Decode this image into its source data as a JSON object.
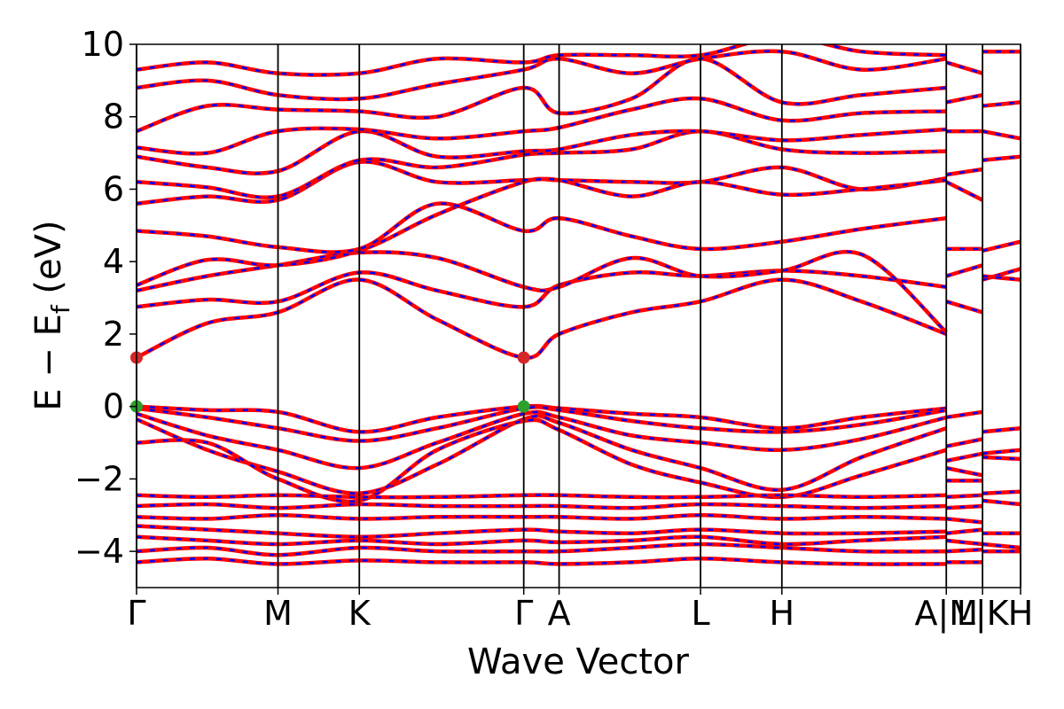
{
  "chart_data": {
    "type": "line",
    "title": "",
    "xlabel": "Wave Vector",
    "ylabel_main": "E − E",
    "ylabel_sub": "f",
    "ylabel_tail": " (eV)",
    "ylim": [
      -5,
      10
    ],
    "yticks": [
      -4,
      -2,
      0,
      2,
      4,
      6,
      8,
      10
    ],
    "xlim": [
      0,
      10.0
    ],
    "kpoints": [
      {
        "label": "Γ",
        "x": 0.0
      },
      {
        "label": "M",
        "x": 1.6
      },
      {
        "label": "K",
        "x": 2.52
      },
      {
        "label": "Γ",
        "x": 4.38
      },
      {
        "label": "A",
        "x": 4.78
      },
      {
        "label": "L",
        "x": 6.38
      },
      {
        "label": "H",
        "x": 7.3
      },
      {
        "label": "A|M",
        "x": 9.16
      },
      {
        "label": "L|K",
        "x": 9.57
      },
      {
        "label": "H",
        "x": 10.0
      }
    ],
    "vertical_lines": [
      0.0,
      1.6,
      2.52,
      4.38,
      4.78,
      6.38,
      7.3,
      9.16,
      9.57,
      10.0
    ],
    "grid": false,
    "legend": "none",
    "line_style": {
      "primary_color": "#ff0000",
      "dash_color": "#0000ff"
    },
    "markers": [
      {
        "name": "cbm",
        "x": 0.0,
        "y": 1.35,
        "color": "#d62728"
      },
      {
        "name": "cbm",
        "x": 4.38,
        "y": 1.35,
        "color": "#d62728"
      },
      {
        "name": "vbm",
        "x": 0.0,
        "y": 0.0,
        "color": "#2ca02c"
      },
      {
        "name": "vbm",
        "x": 4.38,
        "y": 0.0,
        "color": "#2ca02c"
      }
    ],
    "bands": [
      {
        "k": [
          0.0,
          0.8,
          1.6,
          2.52,
          3.4,
          4.38,
          4.78,
          5.6,
          6.38,
          7.3,
          8.2,
          9.16
        ],
        "e": [
          1.35,
          2.3,
          2.6,
          3.5,
          2.4,
          1.35,
          2.0,
          2.6,
          2.9,
          3.5,
          2.9,
          2.0
        ]
      },
      {
        "k": [
          0.0,
          0.8,
          1.6,
          2.52,
          3.4,
          4.38,
          4.78,
          5.6,
          6.38,
          7.3,
          8.2,
          9.16
        ],
        "e": [
          2.75,
          2.95,
          2.9,
          3.7,
          3.2,
          2.75,
          3.35,
          3.7,
          3.6,
          3.75,
          3.6,
          3.3
        ]
      },
      {
        "k": [
          0.0,
          0.8,
          1.6,
          2.52,
          3.4,
          4.38,
          4.78,
          5.6,
          6.38,
          7.3,
          8.2,
          9.16
        ],
        "e": [
          3.2,
          3.6,
          3.9,
          4.25,
          4.1,
          3.3,
          3.3,
          4.1,
          3.6,
          3.75,
          4.2,
          2.05
        ]
      },
      {
        "k": [
          0.0,
          0.8,
          1.6,
          2.52,
          3.4,
          4.38,
          4.78,
          5.6,
          6.38,
          7.3,
          8.2,
          9.16
        ],
        "e": [
          3.35,
          4.05,
          3.9,
          4.3,
          5.3,
          6.2,
          6.25,
          6.2,
          6.2,
          6.6,
          6.0,
          6.3
        ]
      },
      {
        "k": [
          0.0,
          0.8,
          1.6,
          2.52,
          3.4,
          4.38,
          4.78,
          5.6,
          6.38,
          7.3,
          8.2,
          9.16
        ],
        "e": [
          4.85,
          4.7,
          4.4,
          4.35,
          5.6,
          4.85,
          5.2,
          4.7,
          4.35,
          4.55,
          4.9,
          5.2
        ]
      },
      {
        "k": [
          0.0,
          0.8,
          1.6,
          2.52,
          3.4,
          4.38,
          4.78,
          5.6,
          6.38,
          7.3,
          8.2,
          9.16
        ],
        "e": [
          5.6,
          5.8,
          5.7,
          6.75,
          6.2,
          6.25,
          6.25,
          5.8,
          6.2,
          5.85,
          6.0,
          6.25
        ]
      },
      {
        "k": [
          0.0,
          0.8,
          1.6,
          2.52,
          3.4,
          4.38,
          4.78,
          5.6,
          6.38,
          7.3,
          8.2,
          9.16
        ],
        "e": [
          6.2,
          6.05,
          5.8,
          6.8,
          6.6,
          6.95,
          7.0,
          7.1,
          7.6,
          7.1,
          7.0,
          7.05
        ]
      },
      {
        "k": [
          0.0,
          0.8,
          1.6,
          2.52,
          3.4,
          4.38,
          4.78,
          5.6,
          6.38,
          7.3,
          8.2,
          9.16
        ],
        "e": [
          6.9,
          6.6,
          6.5,
          7.6,
          6.9,
          7.05,
          7.1,
          7.5,
          7.6,
          7.35,
          7.5,
          7.65
        ]
      },
      {
        "k": [
          0.0,
          0.8,
          1.6,
          2.52,
          3.4,
          4.38,
          4.78,
          5.6,
          6.38,
          7.3,
          8.2,
          9.16
        ],
        "e": [
          7.15,
          7.0,
          7.6,
          7.65,
          7.4,
          7.6,
          7.7,
          8.2,
          8.5,
          7.9,
          8.1,
          8.15
        ]
      },
      {
        "k": [
          0.0,
          0.8,
          1.6,
          2.52,
          3.4,
          4.38,
          4.78,
          5.6,
          6.38,
          7.3,
          8.2,
          9.16
        ],
        "e": [
          7.6,
          8.3,
          8.2,
          8.15,
          8.0,
          8.8,
          8.1,
          8.5,
          9.6,
          8.4,
          8.6,
          8.8
        ]
      },
      {
        "k": [
          0.0,
          0.8,
          1.6,
          2.52,
          3.4,
          4.38,
          4.78,
          5.6,
          6.38,
          7.3,
          8.2,
          9.16
        ],
        "e": [
          8.8,
          9.0,
          8.6,
          8.5,
          8.9,
          9.3,
          9.6,
          9.2,
          9.6,
          9.8,
          9.3,
          9.6
        ]
      },
      {
        "k": [
          0.0,
          0.8,
          1.6,
          2.52,
          3.4,
          4.38,
          4.78,
          5.6,
          6.38,
          7.3,
          8.2,
          9.16
        ],
        "e": [
          9.3,
          9.5,
          9.2,
          9.2,
          9.6,
          9.5,
          9.7,
          9.7,
          9.7,
          10.2,
          9.8,
          9.7
        ]
      },
      {
        "k": [
          0.0,
          0.8,
          1.6,
          2.52,
          3.4,
          4.38,
          4.78,
          5.6,
          6.38,
          7.3,
          8.2,
          9.16
        ],
        "e": [
          0.0,
          -0.1,
          -0.15,
          -0.7,
          -0.3,
          0.0,
          -0.05,
          -0.2,
          -0.3,
          -0.6,
          -0.3,
          -0.05
        ]
      },
      {
        "k": [
          0.0,
          0.8,
          1.6,
          2.52,
          3.4,
          4.38,
          4.78,
          5.6,
          6.38,
          7.3,
          8.2,
          9.16
        ],
        "e": [
          -0.05,
          -0.3,
          -0.6,
          -0.95,
          -0.6,
          -0.05,
          -0.1,
          -0.4,
          -0.6,
          -0.7,
          -0.5,
          -0.1
        ]
      },
      {
        "k": [
          0.0,
          0.8,
          1.6,
          2.52,
          3.4,
          4.38,
          4.78,
          5.6,
          6.38,
          7.3,
          8.2,
          9.16
        ],
        "e": [
          -0.2,
          -0.8,
          -1.2,
          -1.7,
          -1.0,
          -0.2,
          -0.3,
          -0.8,
          -1.0,
          -1.2,
          -0.9,
          -0.3
        ]
      },
      {
        "k": [
          0.0,
          0.8,
          1.6,
          2.52,
          3.4,
          4.38,
          4.78,
          5.6,
          6.38,
          7.3,
          8.2,
          9.16
        ],
        "e": [
          -0.35,
          -1.2,
          -1.8,
          -2.4,
          -1.6,
          -0.35,
          -0.45,
          -1.2,
          -1.7,
          -2.3,
          -1.4,
          -0.6
        ]
      },
      {
        "k": [
          0.0,
          0.8,
          1.6,
          2.52,
          3.4,
          4.38,
          4.78,
          5.6,
          6.38,
          7.3,
          8.2,
          9.16
        ],
        "e": [
          -1.0,
          -1.0,
          -2.0,
          -2.6,
          -1.2,
          -0.4,
          -0.65,
          -1.6,
          -2.1,
          -2.5,
          -1.9,
          -1.2
        ]
      },
      {
        "k": [
          0.0,
          0.8,
          1.6,
          2.52,
          3.4,
          4.38,
          4.78,
          5.6,
          6.38,
          7.3,
          8.2,
          9.16
        ],
        "e": [
          -2.45,
          -2.5,
          -2.45,
          -2.5,
          -2.5,
          -2.45,
          -2.45,
          -2.5,
          -2.5,
          -2.45,
          -2.5,
          -2.45
        ]
      },
      {
        "k": [
          0.0,
          0.8,
          1.6,
          2.52,
          3.4,
          4.38,
          4.78,
          5.6,
          6.38,
          7.3,
          8.2,
          9.16
        ],
        "e": [
          -2.75,
          -2.7,
          -2.8,
          -2.7,
          -2.75,
          -2.75,
          -2.75,
          -2.8,
          -2.7,
          -2.75,
          -2.8,
          -2.75
        ]
      },
      {
        "k": [
          0.0,
          0.8,
          1.6,
          2.52,
          3.4,
          4.38,
          4.78,
          5.6,
          6.38,
          7.3,
          8.2,
          9.16
        ],
        "e": [
          -3.05,
          -3.1,
          -3.0,
          -3.1,
          -3.05,
          -3.05,
          -3.05,
          -3.1,
          -3.0,
          -3.1,
          -3.05,
          -3.1
        ]
      },
      {
        "k": [
          0.0,
          0.8,
          1.6,
          2.52,
          3.4,
          4.38,
          4.78,
          5.6,
          6.38,
          7.3,
          8.2,
          9.16
        ],
        "e": [
          -3.3,
          -3.4,
          -3.5,
          -3.6,
          -3.5,
          -3.4,
          -3.45,
          -3.5,
          -3.4,
          -3.5,
          -3.5,
          -3.45
        ]
      },
      {
        "k": [
          0.0,
          0.8,
          1.6,
          2.52,
          3.4,
          4.38,
          4.78,
          5.6,
          6.38,
          7.3,
          8.2,
          9.16
        ],
        "e": [
          -3.6,
          -3.7,
          -3.8,
          -3.7,
          -3.8,
          -3.7,
          -3.75,
          -3.7,
          -3.6,
          -3.8,
          -3.7,
          -3.6
        ]
      },
      {
        "k": [
          0.0,
          0.8,
          1.6,
          2.52,
          3.4,
          4.38,
          4.78,
          5.6,
          6.38,
          7.3,
          8.2,
          9.16
        ],
        "e": [
          -4.0,
          -3.9,
          -4.1,
          -3.9,
          -4.0,
          -4.0,
          -4.0,
          -3.9,
          -3.8,
          -3.9,
          -4.0,
          -4.0
        ]
      },
      {
        "k": [
          0.0,
          0.8,
          1.6,
          2.52,
          3.4,
          4.38,
          4.78,
          5.6,
          6.38,
          7.3,
          8.2,
          9.16
        ],
        "e": [
          -4.3,
          -4.2,
          -4.35,
          -4.25,
          -4.3,
          -4.3,
          -4.35,
          -4.3,
          -4.2,
          -4.3,
          -4.35,
          -4.35
        ]
      },
      {
        "k": [
          9.16,
          9.57
        ],
        "e": [
          4.35,
          4.35
        ]
      },
      {
        "k": [
          9.16,
          9.57
        ],
        "e": [
          3.6,
          3.9
        ]
      },
      {
        "k": [
          9.16,
          9.57
        ],
        "e": [
          2.9,
          2.6
        ]
      },
      {
        "k": [
          9.16,
          9.57
        ],
        "e": [
          6.2,
          5.7
        ]
      },
      {
        "k": [
          9.16,
          9.57
        ],
        "e": [
          6.4,
          6.55
        ]
      },
      {
        "k": [
          9.16,
          9.57
        ],
        "e": [
          7.6,
          7.6
        ]
      },
      {
        "k": [
          9.16,
          9.57
        ],
        "e": [
          8.4,
          8.6
        ]
      },
      {
        "k": [
          9.16,
          9.57
        ],
        "e": [
          9.5,
          9.2
        ]
      },
      {
        "k": [
          9.16,
          9.57
        ],
        "e": [
          -0.3,
          -0.15
        ]
      },
      {
        "k": [
          9.16,
          9.57
        ],
        "e": [
          -1.1,
          -0.9
        ]
      },
      {
        "k": [
          9.16,
          9.57
        ],
        "e": [
          -1.5,
          -1.3
        ]
      },
      {
        "k": [
          9.16,
          9.57
        ],
        "e": [
          -1.7,
          -1.9
        ]
      },
      {
        "k": [
          9.16,
          9.57
        ],
        "e": [
          -2.05,
          -2.05
        ]
      },
      {
        "k": [
          9.16,
          9.57
        ],
        "e": [
          -2.5,
          -2.45
        ]
      },
      {
        "k": [
          9.16,
          9.57
        ],
        "e": [
          -2.8,
          -2.75
        ]
      },
      {
        "k": [
          9.16,
          9.57
        ],
        "e": [
          -3.1,
          -3.2
        ]
      },
      {
        "k": [
          9.16,
          9.57
        ],
        "e": [
          -3.5,
          -3.4
        ]
      },
      {
        "k": [
          9.16,
          9.57
        ],
        "e": [
          -3.7,
          -3.8
        ]
      },
      {
        "k": [
          9.16,
          9.57
        ],
        "e": [
          -4.0,
          -3.95
        ]
      },
      {
        "k": [
          9.16,
          9.57
        ],
        "e": [
          -4.3,
          -4.3
        ]
      },
      {
        "k": [
          9.57,
          10.0
        ],
        "e": [
          4.3,
          4.55
        ]
      },
      {
        "k": [
          9.57,
          10.0
        ],
        "e": [
          3.5,
          3.8
        ]
      },
      {
        "k": [
          9.57,
          10.0
        ],
        "e": [
          3.6,
          3.5
        ]
      },
      {
        "k": [
          9.57,
          10.0
        ],
        "e": [
          6.8,
          6.9
        ]
      },
      {
        "k": [
          9.57,
          10.0
        ],
        "e": [
          7.6,
          7.4
        ]
      },
      {
        "k": [
          9.57,
          10.0
        ],
        "e": [
          8.3,
          8.4
        ]
      },
      {
        "k": [
          9.57,
          10.0
        ],
        "e": [
          9.8,
          9.8
        ]
      },
      {
        "k": [
          9.57,
          10.0
        ],
        "e": [
          -0.7,
          -0.6
        ]
      },
      {
        "k": [
          9.57,
          10.0
        ],
        "e": [
          -1.3,
          -1.2
        ]
      },
      {
        "k": [
          9.57,
          10.0
        ],
        "e": [
          -1.4,
          -1.45
        ]
      },
      {
        "k": [
          9.57,
          10.0
        ],
        "e": [
          -2.4,
          -2.35
        ]
      },
      {
        "k": [
          9.57,
          10.0
        ],
        "e": [
          -2.6,
          -2.7
        ]
      },
      {
        "k": [
          9.57,
          10.0
        ],
        "e": [
          -3.5,
          -3.5
        ]
      },
      {
        "k": [
          9.57,
          10.0
        ],
        "e": [
          -3.8,
          -3.9
        ]
      },
      {
        "k": [
          9.57,
          10.0
        ],
        "e": [
          -4.0,
          -4.0
        ]
      }
    ]
  }
}
